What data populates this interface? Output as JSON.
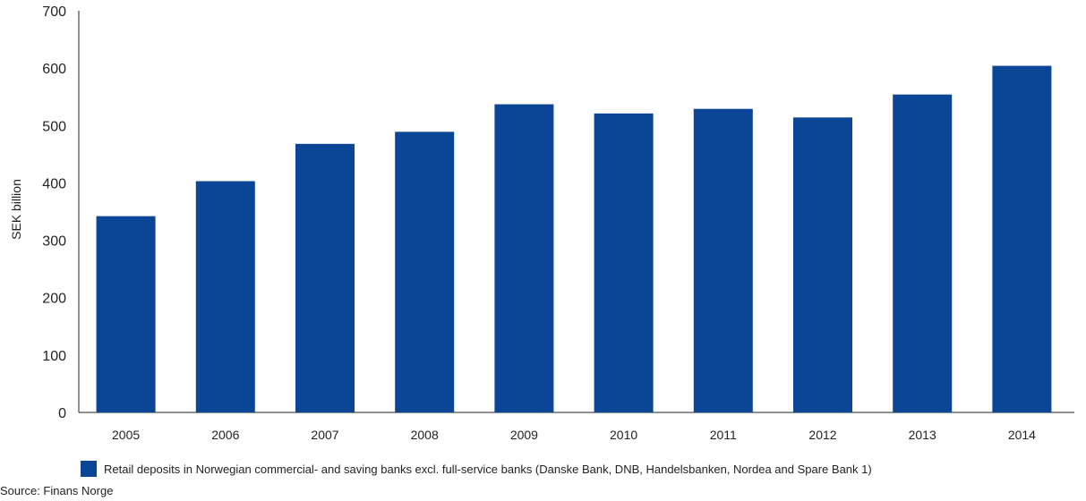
{
  "chart_data": {
    "type": "bar",
    "categories": [
      "2005",
      "2006",
      "2007",
      "2008",
      "2009",
      "2010",
      "2011",
      "2012",
      "2013",
      "2014"
    ],
    "series": [
      {
        "name": "Retail deposits in Norwegian commercial- and saving banks excl. full-service banks (Danske Bank, DNB, Handelsbanken, Nordea and Spare Bank 1)",
        "values": [
          342,
          403,
          468,
          489,
          537,
          521,
          529,
          514,
          554,
          604
        ],
        "color": "#0b4596"
      }
    ],
    "ylabel": "SEK billion",
    "ylim": [
      0,
      700
    ],
    "yticks": [
      0,
      100,
      200,
      300,
      400,
      500,
      600,
      700
    ],
    "legend_position": "bottom-left",
    "grid": false
  },
  "source": "Source: Finans Norge"
}
